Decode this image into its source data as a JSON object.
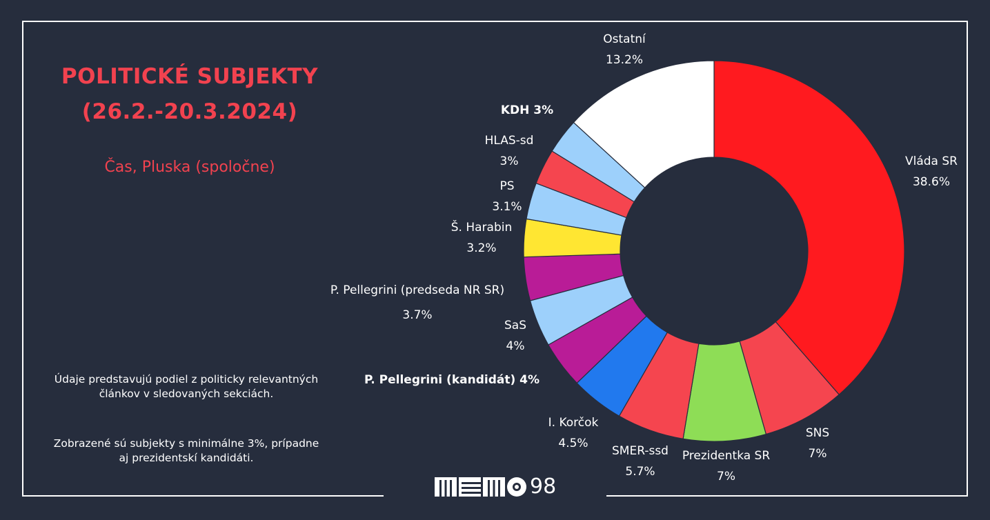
{
  "title_line1": "POLITICKÉ SUBJEKTY",
  "title_line2": "(26.2.-20.3.2024)",
  "subtitle": "Čas, Pluska (spoločne)",
  "note1": "Údaje predstavujú podiel z politicky relevantných článkov v sledovaných sekciách.",
  "note2": "Zobrazené sú subjekty s minimálne 3%, prípadne aj prezidentskí kandidáti.",
  "logo_text": "98",
  "chart_data": {
    "type": "pie",
    "variant": "donut",
    "title": "POLITICKÉ SUBJEKTY (26.2.-20.3.2024)",
    "start": "12 o'clock, clockwise",
    "slices": [
      {
        "label": "Vláda SR",
        "value": 38.6,
        "value_text": "38.6%",
        "color": "#ff1a1f"
      },
      {
        "label": "SNS",
        "value": 7,
        "value_text": "7%",
        "color": "#f5454f"
      },
      {
        "label": "Prezidentka SR",
        "value": 7,
        "value_text": "7%",
        "color": "#8edd56"
      },
      {
        "label": "SMER-ssd",
        "value": 5.7,
        "value_text": "5.7%",
        "color": "#f5454f"
      },
      {
        "label": "I. Korčok",
        "value": 4.5,
        "value_text": "4.5%",
        "color": "#2179ee"
      },
      {
        "label": "P. Pellegrini (kandidát)",
        "value": 4,
        "value_text": "4%",
        "color": "#b91c97"
      },
      {
        "label": "SaS",
        "value": 4,
        "value_text": "4%",
        "color": "#9dd0fb"
      },
      {
        "label": "P. Pellegrini (predseda NR SR)",
        "value": 3.7,
        "value_text": "3.7%",
        "color": "#b91c97"
      },
      {
        "label": "Š. Harabin",
        "value": 3.2,
        "value_text": "3.2%",
        "color": "#ffe632"
      },
      {
        "label": "PS",
        "value": 3.1,
        "value_text": "3.1%",
        "color": "#9dd0fb"
      },
      {
        "label": "HLAS-sd",
        "value": 3,
        "value_text": "3%",
        "color": "#f5454f"
      },
      {
        "label": "KDH",
        "value": 3,
        "value_text": "3%",
        "color": "#9dd0fb"
      },
      {
        "label": "Ostatní",
        "value": 13.2,
        "value_text": "13.2%",
        "color": "#ffffff"
      }
    ]
  }
}
